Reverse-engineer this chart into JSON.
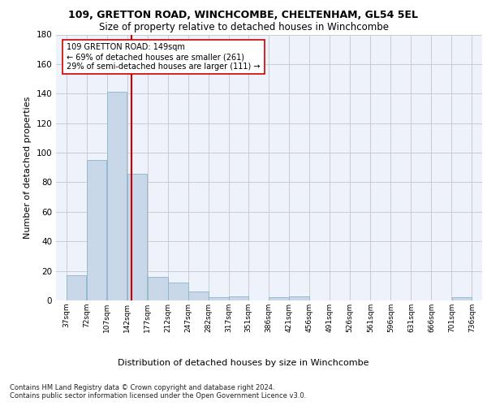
{
  "title_line1": "109, GRETTON ROAD, WINCHCOMBE, CHELTENHAM, GL54 5EL",
  "title_line2": "Size of property relative to detached houses in Winchcombe",
  "xlabel": "Distribution of detached houses by size in Winchcombe",
  "ylabel": "Number of detached properties",
  "bar_color": "#c8d8e8",
  "bar_edge_color": "#8ab4cc",
  "grid_color": "#cccccc",
  "background_color": "#eef2fb",
  "annotation_text": "109 GRETTON ROAD: 149sqm\n← 69% of detached houses are smaller (261)\n29% of semi-detached houses are larger (111) →",
  "vline_x": 149,
  "vline_color": "#cc0000",
  "footnote": "Contains HM Land Registry data © Crown copyright and database right 2024.\nContains public sector information licensed under the Open Government Licence v3.0.",
  "bin_edges": [
    37,
    72,
    107,
    142,
    177,
    212,
    247,
    282,
    317,
    351,
    386,
    421,
    456,
    491,
    526,
    561,
    596,
    631,
    666,
    701,
    736
  ],
  "bar_heights": [
    17,
    95,
    141,
    86,
    16,
    12,
    6,
    2,
    3,
    0,
    2,
    3,
    0,
    0,
    0,
    0,
    0,
    0,
    0,
    2
  ],
  "ylim": [
    0,
    180
  ],
  "yticks": [
    0,
    20,
    40,
    60,
    80,
    100,
    120,
    140,
    160,
    180
  ]
}
